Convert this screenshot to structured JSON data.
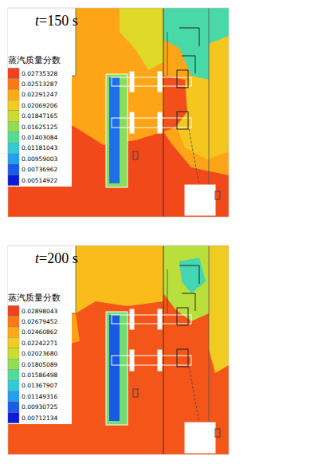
{
  "chart_data": [
    {
      "type": "contour",
      "title": "t=150 s",
      "xlim": [
        10,
        287
      ],
      "ylim": [
        10,
        272
      ],
      "tick_labels": false,
      "colorbar": {
        "label": "蒸汽质量分数",
        "clim": [
          0.00514922,
          0.02735328
        ],
        "ticks": [
          0.02735328,
          0.02513287,
          0.02291247,
          0.02069206,
          0.01847165,
          0.01625125,
          0.01403084,
          0.01181043,
          0.00959003,
          0.00736962,
          0.00514922
        ]
      },
      "regions": [
        {
          "value": 0.0232,
          "points": [
            [
              95,
              10
            ],
            [
              287,
              10
            ],
            [
              287,
              272
            ],
            [
              10,
              272
            ],
            [
              10,
              95
            ],
            [
              95,
              95
            ]
          ]
        },
        {
          "value": 0.0195,
          "points": [
            [
              150,
              10
            ],
            [
              205,
              10
            ],
            [
              205,
              78
            ],
            [
              186,
              88
            ],
            [
              170,
              62
            ],
            [
              150,
              40
            ]
          ]
        },
        {
          "value": 0.0135,
          "points": [
            [
              205,
              10
            ],
            [
              287,
              10
            ],
            [
              287,
              45
            ],
            [
              265,
              55
            ],
            [
              262,
              100
            ],
            [
              240,
              95
            ],
            [
              225,
              60
            ],
            [
              205,
              50
            ]
          ]
        },
        {
          "value": 0.0212,
          "points": [
            [
              262,
              55
            ],
            [
              287,
              45
            ],
            [
              287,
              190
            ],
            [
              260,
              200
            ],
            [
              232,
              185
            ],
            [
              218,
              150
            ],
            [
              226,
              110
            ],
            [
              240,
              95
            ],
            [
              262,
              100
            ]
          ]
        },
        {
          "value": 0.027,
          "points": [
            [
              10,
              150
            ],
            [
              60,
              140
            ],
            [
              95,
              160
            ],
            [
              130,
              182
            ],
            [
              170,
              176
            ],
            [
              205,
              165
            ],
            [
              215,
              180
            ],
            [
              240,
              210
            ],
            [
              287,
              220
            ],
            [
              287,
              272
            ],
            [
              10,
              272
            ]
          ]
        },
        {
          "value": 0.0268,
          "points": [
            [
              205,
              95
            ],
            [
              232,
              100
            ],
            [
              235,
              140
            ],
            [
              220,
              160
            ],
            [
              205,
              165
            ]
          ]
        },
        {
          "value": 0.016,
          "points": [
            [
              133,
              93
            ],
            [
              160,
              93
            ],
            [
              160,
              235
            ],
            [
              133,
              235
            ]
          ]
        },
        {
          "value": 0.008,
          "points": [
            [
              137,
              97
            ],
            [
              150,
              97
            ],
            [
              150,
              230
            ],
            [
              137,
              230
            ]
          ]
        }
      ]
    },
    {
      "type": "contour",
      "title": "t=200 s",
      "xlim": [
        10,
        287
      ],
      "ylim": [
        10,
        272
      ],
      "tick_labels": false,
      "colorbar": {
        "label": "蒸汽质量分数",
        "clim": [
          0.00712134,
          0.02898043
        ],
        "ticks": [
          0.02898043,
          0.02679452,
          0.02460862,
          0.02242271,
          {
            "value": 0.0202368,
            "label": "0.02023680"
          },
          0.01805089,
          0.01586498,
          0.01367907,
          0.01149316,
          0.00930725,
          0.00712134
        ]
      },
      "regions": [
        {
          "value": 0.0282,
          "points": [
            [
              95,
              10
            ],
            [
              287,
              10
            ],
            [
              287,
              272
            ],
            [
              10,
              272
            ],
            [
              10,
              95
            ],
            [
              95,
              95
            ]
          ]
        },
        {
          "value": 0.0236,
          "points": [
            [
              95,
              10
            ],
            [
              205,
              10
            ],
            [
              205,
              80
            ],
            [
              160,
              86
            ],
            [
              120,
              80
            ],
            [
              95,
              95
            ]
          ]
        },
        {
          "value": 0.025,
          "points": [
            [
              10,
              95
            ],
            [
              95,
              95
            ],
            [
              100,
              130
            ],
            [
              60,
              140
            ],
            [
              10,
              135
            ]
          ]
        },
        {
          "value": 0.0195,
          "points": [
            [
              205,
              10
            ],
            [
              262,
              10
            ],
            [
              262,
              95
            ],
            [
              240,
              105
            ],
            [
              220,
              90
            ],
            [
              205,
              70
            ]
          ]
        },
        {
          "value": 0.015,
          "points": [
            [
              225,
              30
            ],
            [
              250,
              25
            ],
            [
              258,
              55
            ],
            [
              240,
              70
            ],
            [
              228,
              55
            ]
          ]
        },
        {
          "value": 0.0225,
          "points": [
            [
              262,
              10
            ],
            [
              287,
              10
            ],
            [
              287,
              160
            ],
            [
              270,
              170
            ],
            [
              262,
              140
            ]
          ]
        },
        {
          "value": 0.017,
          "points": [
            [
              133,
              93
            ],
            [
              160,
              93
            ],
            [
              160,
              235
            ],
            [
              133,
              235
            ]
          ]
        },
        {
          "value": 0.0092,
          "points": [
            [
              137,
              97
            ],
            [
              150,
              97
            ],
            [
              150,
              230
            ],
            [
              137,
              230
            ]
          ]
        }
      ]
    }
  ]
}
